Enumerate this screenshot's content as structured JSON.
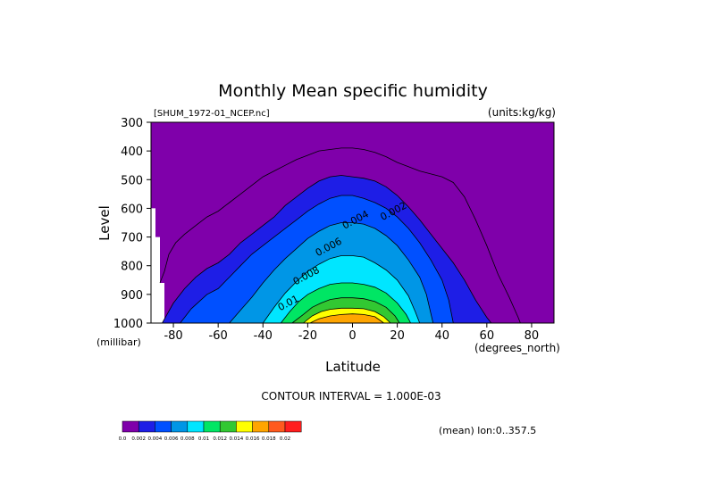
{
  "chart_data": {
    "type": "heatmap",
    "title": "Monthly Mean specific humidity",
    "file_label": "[SHUM_1972-01_NCEP.nc]",
    "units_label": "(units:kg/kg)",
    "xlabel": "Latitude",
    "x_units": "(degrees_north)",
    "ylabel": "Level",
    "y_units": "(millibar)",
    "xlim": [
      -90,
      90
    ],
    "ylim": [
      1000,
      300
    ],
    "x_ticks": [
      -80,
      -60,
      -40,
      -20,
      0,
      20,
      40,
      60,
      80
    ],
    "y_ticks": [
      300,
      400,
      500,
      600,
      700,
      800,
      900,
      1000
    ],
    "contour_interval_text": "CONTOUR INTERVAL = 1.000E-03",
    "mean_text": "(mean) lon:0..357.5",
    "contour_labels": [
      {
        "text": "0.002",
        "lat": 19,
        "level": 620
      },
      {
        "text": "0.004",
        "lat": 2,
        "level": 650
      },
      {
        "text": "0.006",
        "lat": -10,
        "level": 745
      },
      {
        "text": "0.008",
        "lat": -20,
        "level": 845
      },
      {
        "text": "0.01",
        "lat": -28,
        "level": 940
      }
    ],
    "colorbar": {
      "colors": [
        "#7f00aa",
        "#1e1ee6",
        "#0050ff",
        "#0096e6",
        "#00e6ff",
        "#00e664",
        "#32c832",
        "#ffff00",
        "#ffa500",
        "#ff5a1e",
        "#ff1e1e"
      ],
      "labels": [
        "0.0",
        "0.002",
        "0.004",
        "0.006",
        "0.008",
        "0.01",
        "0.012",
        "0.014",
        "0.016",
        "0.018",
        "0.02"
      ]
    },
    "contours": [
      {
        "threshold": 0.001,
        "color": "#1e1ee6",
        "top_profile": [
          [
            -88,
            1000
          ],
          [
            -85,
            1000
          ],
          [
            -80,
            930
          ],
          [
            -75,
            880
          ],
          [
            -70,
            840
          ],
          [
            -65,
            810
          ],
          [
            -60,
            790
          ],
          [
            -55,
            760
          ],
          [
            -50,
            720
          ],
          [
            -45,
            690
          ],
          [
            -40,
            660
          ],
          [
            -35,
            630
          ],
          [
            -30,
            590
          ],
          [
            -25,
            560
          ],
          [
            -20,
            530
          ],
          [
            -15,
            505
          ],
          [
            -10,
            490
          ],
          [
            -5,
            485
          ],
          [
            0,
            490
          ],
          [
            5,
            495
          ],
          [
            10,
            505
          ],
          [
            15,
            525
          ],
          [
            20,
            555
          ],
          [
            25,
            595
          ],
          [
            30,
            640
          ],
          [
            35,
            690
          ],
          [
            40,
            740
          ],
          [
            45,
            790
          ],
          [
            50,
            850
          ],
          [
            55,
            920
          ],
          [
            60,
            980
          ],
          [
            62,
            1000
          ]
        ]
      },
      {
        "threshold": 0.002,
        "color": "#0050ff",
        "top_profile": [
          [
            -77,
            1000
          ],
          [
            -72,
            950
          ],
          [
            -65,
            900
          ],
          [
            -60,
            880
          ],
          [
            -55,
            840
          ],
          [
            -50,
            800
          ],
          [
            -45,
            760
          ],
          [
            -40,
            730
          ],
          [
            -35,
            700
          ],
          [
            -30,
            670
          ],
          [
            -25,
            640
          ],
          [
            -20,
            610
          ],
          [
            -15,
            585
          ],
          [
            -10,
            565
          ],
          [
            -5,
            555
          ],
          [
            0,
            555
          ],
          [
            5,
            565
          ],
          [
            10,
            580
          ],
          [
            15,
            600
          ],
          [
            20,
            630
          ],
          [
            25,
            670
          ],
          [
            30,
            720
          ],
          [
            35,
            780
          ],
          [
            40,
            850
          ],
          [
            43,
            920
          ],
          [
            45,
            1000
          ]
        ]
      },
      {
        "threshold": 0.003,
        "color": "#0096e6",
        "top_profile": [
          [
            -55,
            1000
          ],
          [
            -50,
            955
          ],
          [
            -45,
            910
          ],
          [
            -40,
            860
          ],
          [
            -35,
            815
          ],
          [
            -30,
            775
          ],
          [
            -25,
            740
          ],
          [
            -20,
            705
          ],
          [
            -15,
            680
          ],
          [
            -10,
            660
          ],
          [
            -5,
            650
          ],
          [
            0,
            650
          ],
          [
            5,
            655
          ],
          [
            10,
            670
          ],
          [
            15,
            695
          ],
          [
            20,
            730
          ],
          [
            25,
            780
          ],
          [
            30,
            840
          ],
          [
            33,
            900
          ],
          [
            36,
            1000
          ]
        ]
      },
      {
        "threshold": 0.004,
        "color": "#00e6ff",
        "top_profile": [
          [
            -40,
            1000
          ],
          [
            -35,
            945
          ],
          [
            -30,
            895
          ],
          [
            -25,
            855
          ],
          [
            -20,
            820
          ],
          [
            -15,
            795
          ],
          [
            -10,
            775
          ],
          [
            -5,
            765
          ],
          [
            0,
            765
          ],
          [
            5,
            770
          ],
          [
            10,
            790
          ],
          [
            15,
            815
          ],
          [
            20,
            850
          ],
          [
            25,
            905
          ],
          [
            28,
            960
          ],
          [
            30,
            1000
          ]
        ]
      },
      {
        "threshold": 0.005,
        "color": "#00e664",
        "top_profile": [
          [
            -32,
            1000
          ],
          [
            -28,
            960
          ],
          [
            -24,
            925
          ],
          [
            -20,
            900
          ],
          [
            -15,
            880
          ],
          [
            -10,
            865
          ],
          [
            -5,
            860
          ],
          [
            0,
            860
          ],
          [
            5,
            865
          ],
          [
            10,
            875
          ],
          [
            15,
            895
          ],
          [
            20,
            930
          ],
          [
            24,
            970
          ],
          [
            26,
            1000
          ]
        ]
      },
      {
        "threshold": 0.006,
        "color": "#32c832",
        "top_profile": [
          [
            -27,
            1000
          ],
          [
            -22,
            970
          ],
          [
            -18,
            945
          ],
          [
            -14,
            930
          ],
          [
            -10,
            918
          ],
          [
            -5,
            912
          ],
          [
            0,
            912
          ],
          [
            5,
            915
          ],
          [
            10,
            925
          ],
          [
            15,
            945
          ],
          [
            19,
            975
          ],
          [
            21,
            1000
          ]
        ]
      },
      {
        "threshold": 0.007,
        "color": "#ffff00",
        "top_profile": [
          [
            -22,
            1000
          ],
          [
            -18,
            975
          ],
          [
            -14,
            960
          ],
          [
            -10,
            952
          ],
          [
            -5,
            948
          ],
          [
            0,
            948
          ],
          [
            5,
            950
          ],
          [
            10,
            960
          ],
          [
            14,
            978
          ],
          [
            17,
            1000
          ]
        ]
      },
      {
        "threshold": 0.008,
        "color": "#ffa500",
        "top_profile": [
          [
            -19,
            1000
          ],
          [
            -15,
            985
          ],
          [
            -10,
            975
          ],
          [
            -5,
            970
          ],
          [
            0,
            968
          ],
          [
            5,
            970
          ],
          [
            10,
            978
          ],
          [
            14,
            1000
          ]
        ]
      }
    ],
    "outer_contour_0_001": [
      [
        -86,
        860
      ],
      [
        -84,
        820
      ],
      [
        -82,
        760
      ],
      [
        -79,
        720
      ],
      [
        -75,
        690
      ],
      [
        -70,
        660
      ],
      [
        -65,
        630
      ],
      [
        -60,
        610
      ],
      [
        -55,
        580
      ],
      [
        -50,
        550
      ],
      [
        -45,
        520
      ],
      [
        -40,
        490
      ],
      [
        -35,
        470
      ],
      [
        -30,
        450
      ],
      [
        -25,
        430
      ],
      [
        -20,
        415
      ],
      [
        -15,
        400
      ],
      [
        -10,
        395
      ],
      [
        -5,
        390
      ],
      [
        0,
        390
      ],
      [
        5,
        395
      ],
      [
        10,
        405
      ],
      [
        15,
        420
      ],
      [
        20,
        440
      ],
      [
        25,
        455
      ],
      [
        30,
        470
      ],
      [
        35,
        480
      ],
      [
        40,
        490
      ],
      [
        45,
        510
      ],
      [
        50,
        560
      ],
      [
        55,
        640
      ],
      [
        60,
        730
      ],
      [
        65,
        830
      ],
      [
        70,
        910
      ],
      [
        74,
        980
      ],
      [
        75,
        1000
      ]
    ]
  }
}
